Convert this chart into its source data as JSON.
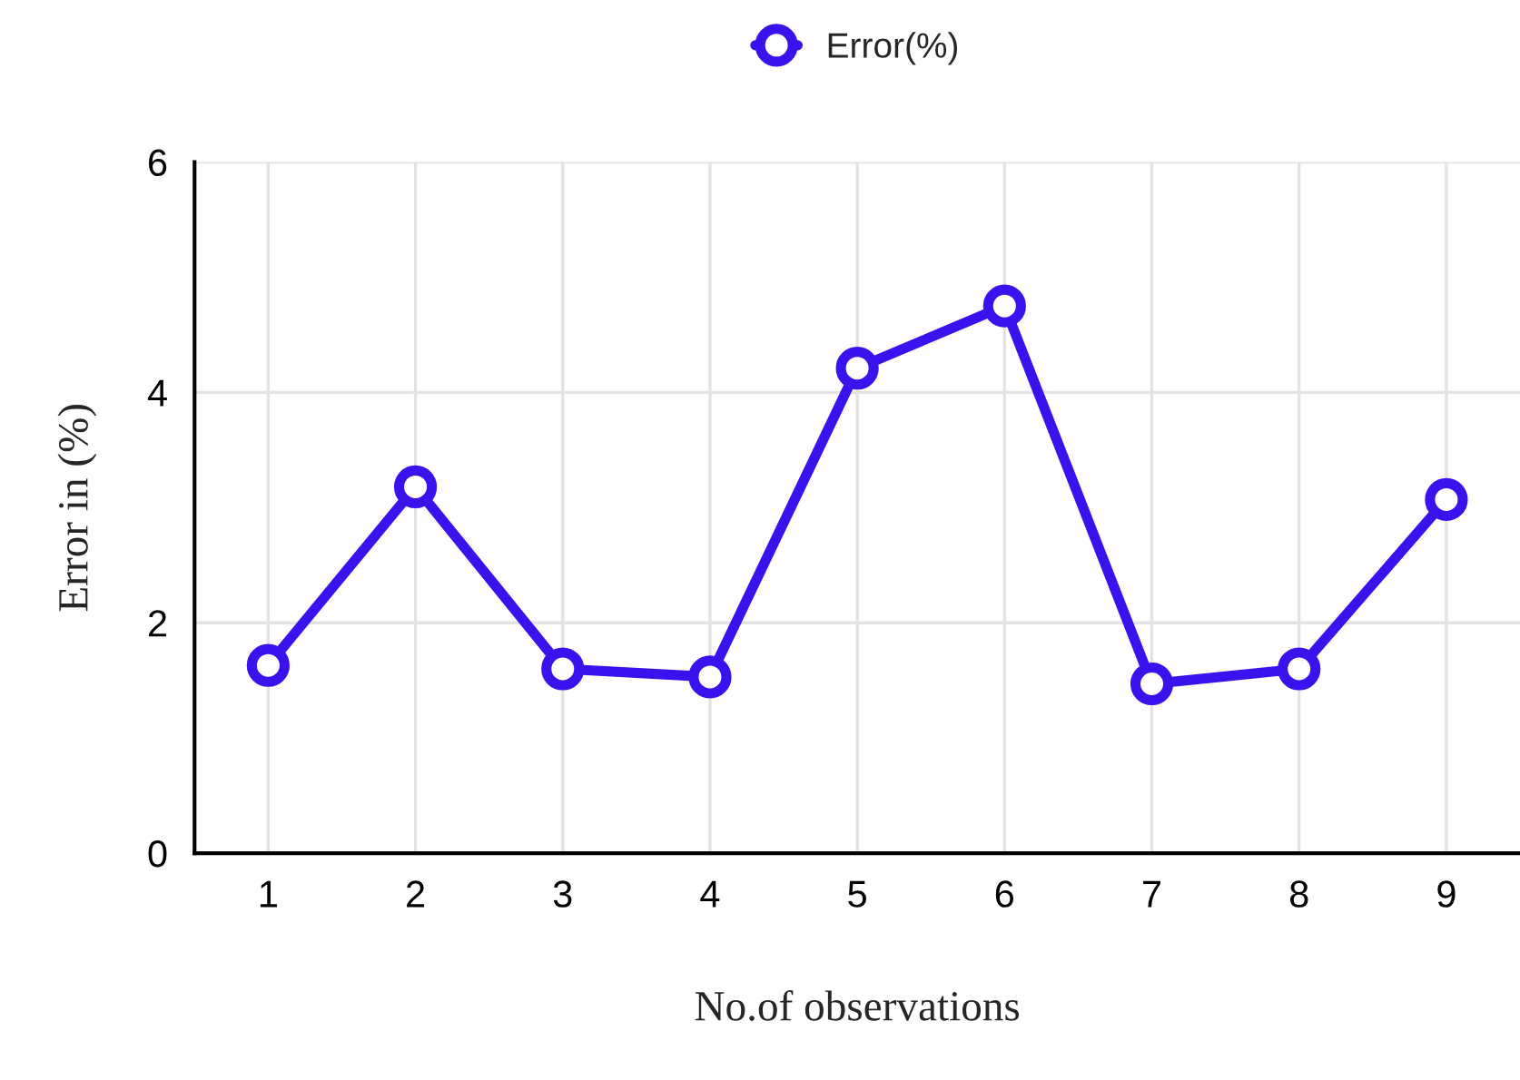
{
  "chart_data": {
    "type": "line",
    "xlabel": "No.of observations",
    "ylabel": "Error in (%)",
    "categories": [
      "1",
      "2",
      "3",
      "4",
      "5",
      "6",
      "7",
      "8",
      "9"
    ],
    "series": [
      {
        "name": "Error(%)",
        "color": "#3a12ee",
        "values": [
          1.63,
          3.18,
          1.6,
          1.53,
          4.21,
          4.75,
          1.47,
          1.6,
          3.07
        ]
      }
    ],
    "ylim": [
      0,
      6
    ],
    "yticks": [
      0,
      2,
      4,
      6
    ],
    "grid": true,
    "legend": "top",
    "marker": "circle",
    "line_style": "solid"
  }
}
